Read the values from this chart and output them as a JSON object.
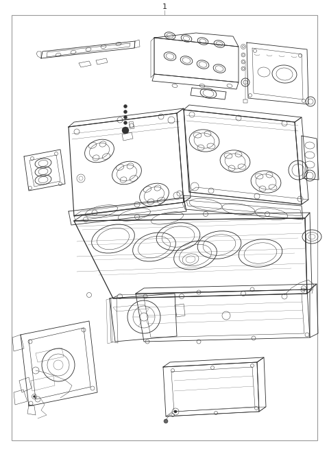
{
  "title_number": "1",
  "bg_color": "#ffffff",
  "line_color": "#2a2a2a",
  "border_color": "#999999",
  "fig_width": 4.8,
  "fig_height": 6.56,
  "dpi": 100,
  "lw_main": 0.6,
  "lw_detail": 0.35,
  "lw_border": 0.8
}
